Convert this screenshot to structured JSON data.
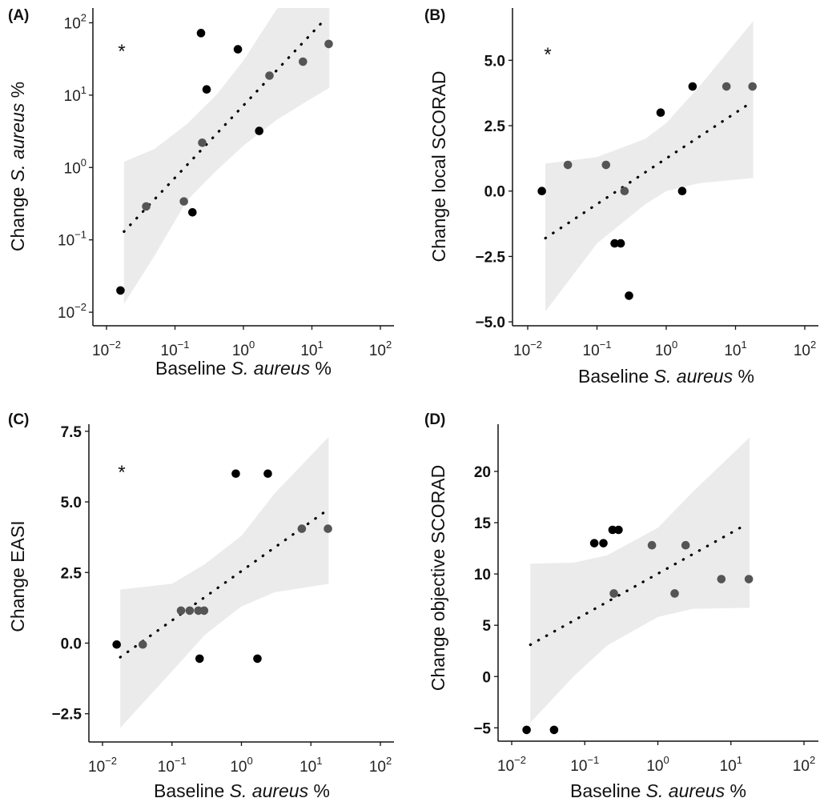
{
  "chart_data": [
    {
      "type": "scatter",
      "panel_label": "(A)",
      "annotation": "*",
      "xlabel": {
        "pre": "Baseline ",
        "italic": "S. aureus",
        "post": " %"
      },
      "ylabel": {
        "pre": "Change ",
        "italic": "S. aureus",
        "post": " %"
      },
      "xscale": "log",
      "yscale": "log",
      "xticks": [
        {
          "base": "10",
          "exp": "−2",
          "v": 0.01
        },
        {
          "base": "10",
          "exp": "−1",
          "v": 0.1
        },
        {
          "base": "10",
          "exp": "0",
          "v": 1
        },
        {
          "base": "10",
          "exp": "1",
          "v": 10
        },
        {
          "base": "10",
          "exp": "2",
          "v": 100
        }
      ],
      "yticks": [
        {
          "base": "10",
          "exp": "2",
          "v": 100
        },
        {
          "base": "10",
          "exp": "1",
          "v": 10
        },
        {
          "base": "10",
          "exp": "0",
          "v": 1
        },
        {
          "base": "10",
          "exp": "−1",
          "v": 0.1
        },
        {
          "base": "10",
          "exp": "−2",
          "v": 0.01
        }
      ],
      "xlim": [
        0.0065,
        145
      ],
      "ylim": [
        0.0065,
        160
      ],
      "points": [
        {
          "x": 0.016,
          "y": 0.02,
          "c": "black"
        },
        {
          "x": 0.038,
          "y": 0.29,
          "c": "grey"
        },
        {
          "x": 0.135,
          "y": 0.34,
          "c": "grey"
        },
        {
          "x": 0.18,
          "y": 0.24,
          "c": "black"
        },
        {
          "x": 0.25,
          "y": 2.2,
          "c": "grey"
        },
        {
          "x": 0.24,
          "y": 72,
          "c": "black"
        },
        {
          "x": 0.29,
          "y": 12,
          "c": "black"
        },
        {
          "x": 0.83,
          "y": 43,
          "c": "black"
        },
        {
          "x": 1.7,
          "y": 3.2,
          "c": "black"
        },
        {
          "x": 2.4,
          "y": 18.6,
          "c": "grey"
        },
        {
          "x": 7.4,
          "y": 29,
          "c": "grey"
        },
        {
          "x": 17.6,
          "y": 51,
          "c": "grey"
        }
      ],
      "trend": [
        [
          0.018,
          0.13
        ],
        [
          16,
          115
        ]
      ],
      "band": {
        "x": [
          0.018,
          0.05,
          0.15,
          0.4,
          1,
          3,
          8,
          18
        ],
        "upper": [
          1.2,
          1.8,
          4,
          10,
          30,
          150,
          400,
          500
        ],
        "lower": [
          0.013,
          0.06,
          0.35,
          0.9,
          2,
          4.5,
          8,
          12.6
        ]
      }
    },
    {
      "type": "scatter",
      "panel_label": "(B)",
      "annotation": "*",
      "xlabel": {
        "pre": "Baseline ",
        "italic": "S. aureus",
        "post": " %"
      },
      "ylabel": {
        "pre": "Change local SCORAD",
        "italic": "",
        "post": ""
      },
      "xscale": "log",
      "yscale": "linear",
      "xticks": [
        {
          "base": "10",
          "exp": "−2",
          "v": 0.01
        },
        {
          "base": "10",
          "exp": "−1",
          "v": 0.1
        },
        {
          "base": "10",
          "exp": "0",
          "v": 1
        },
        {
          "base": "10",
          "exp": "1",
          "v": 10
        },
        {
          "base": "10",
          "exp": "2",
          "v": 100
        }
      ],
      "yticks": [
        {
          "base": "5.0",
          "exp": "",
          "v": 5
        },
        {
          "base": "2.5",
          "exp": "",
          "v": 2.5
        },
        {
          "base": "0.0",
          "exp": "",
          "v": 0
        },
        {
          "base": "−2.5",
          "exp": "",
          "v": -2.5
        },
        {
          "base": "−5.0",
          "exp": "",
          "v": -5
        }
      ],
      "xlim": [
        0.0062,
        160
      ],
      "ylim": [
        -5.15,
        7
      ],
      "points": [
        {
          "x": 0.016,
          "y": 0,
          "c": "black"
        },
        {
          "x": 0.038,
          "y": 1,
          "c": "grey"
        },
        {
          "x": 0.135,
          "y": 1,
          "c": "grey"
        },
        {
          "x": 0.18,
          "y": -2,
          "c": "black"
        },
        {
          "x": 0.22,
          "y": -2,
          "c": "black"
        },
        {
          "x": 0.25,
          "y": 0,
          "c": "grey"
        },
        {
          "x": 0.29,
          "y": -4,
          "c": "black"
        },
        {
          "x": 0.83,
          "y": 3,
          "c": "black"
        },
        {
          "x": 1.7,
          "y": 0,
          "c": "black"
        },
        {
          "x": 2.4,
          "y": 4,
          "c": "black"
        },
        {
          "x": 7.4,
          "y": 4,
          "c": "grey"
        },
        {
          "x": 17.6,
          "y": 4,
          "c": "grey"
        }
      ],
      "trend": [
        [
          0.018,
          -1.8
        ],
        [
          15,
          3.3
        ]
      ],
      "band": {
        "x": [
          0.018,
          0.1,
          0.5,
          1,
          3,
          18
        ],
        "upper": [
          1.05,
          1.3,
          2,
          2.6,
          4,
          6.5
        ],
        "lower": [
          -4.6,
          -2,
          -0.5,
          0,
          0.3,
          0.5
        ]
      }
    },
    {
      "type": "scatter",
      "panel_label": "(C)",
      "annotation": "*",
      "xlabel": {
        "pre": "Baseline ",
        "italic": "S. aureus",
        "post": " %"
      },
      "ylabel": {
        "pre": "Change EASI",
        "italic": "",
        "post": ""
      },
      "xscale": "log",
      "yscale": "linear",
      "xticks": [
        {
          "base": "10",
          "exp": "−2",
          "v": 0.01
        },
        {
          "base": "10",
          "exp": "−1",
          "v": 0.1
        },
        {
          "base": "10",
          "exp": "0",
          "v": 1
        },
        {
          "base": "10",
          "exp": "1",
          "v": 10
        },
        {
          "base": "10",
          "exp": "2",
          "v": 100
        }
      ],
      "yticks": [
        {
          "base": "7.5",
          "exp": "",
          "v": 7.5
        },
        {
          "base": "5.0",
          "exp": "",
          "v": 5
        },
        {
          "base": "2.5",
          "exp": "",
          "v": 2.5
        },
        {
          "base": "0.0",
          "exp": "",
          "v": 0
        },
        {
          "base": "−2.5",
          "exp": "",
          "v": -2.5
        }
      ],
      "xlim": [
        0.0064,
        150
      ],
      "ylim": [
        -3.5,
        7.75
      ],
      "points": [
        {
          "x": 0.016,
          "y": -0.05,
          "c": "black"
        },
        {
          "x": 0.038,
          "y": -0.05,
          "c": "grey"
        },
        {
          "x": 0.135,
          "y": 1.15,
          "c": "grey"
        },
        {
          "x": 0.18,
          "y": 1.15,
          "c": "grey"
        },
        {
          "x": 0.24,
          "y": 1.15,
          "c": "grey"
        },
        {
          "x": 0.25,
          "y": -0.55,
          "c": "black"
        },
        {
          "x": 0.29,
          "y": 1.15,
          "c": "grey"
        },
        {
          "x": 0.83,
          "y": 6,
          "c": "black"
        },
        {
          "x": 1.7,
          "y": -0.55,
          "c": "black"
        },
        {
          "x": 2.4,
          "y": 6,
          "c": "black"
        },
        {
          "x": 7.4,
          "y": 4.05,
          "c": "grey"
        },
        {
          "x": 17.6,
          "y": 4.05,
          "c": "grey"
        }
      ],
      "trend": [
        [
          0.018,
          -0.5
        ],
        [
          17,
          4.7
        ]
      ],
      "band": {
        "x": [
          0.018,
          0.1,
          0.3,
          1,
          3,
          18
        ],
        "upper": [
          1.9,
          2.1,
          2.8,
          3.8,
          5.3,
          7.3
        ],
        "lower": [
          -3,
          -1,
          0.3,
          1.3,
          1.8,
          2.1
        ]
      }
    },
    {
      "type": "scatter",
      "panel_label": "(D)",
      "annotation": "",
      "xlabel": {
        "pre": "Baseline ",
        "italic": "S. aureus",
        "post": " %"
      },
      "ylabel": {
        "pre": "Change objective SCORAD",
        "italic": "",
        "post": ""
      },
      "xscale": "log",
      "yscale": "linear",
      "xticks": [
        {
          "base": "10",
          "exp": "−2",
          "v": 0.01
        },
        {
          "base": "10",
          "exp": "−1",
          "v": 0.1
        },
        {
          "base": "10",
          "exp": "0",
          "v": 1
        },
        {
          "base": "10",
          "exp": "1",
          "v": 10
        },
        {
          "base": "10",
          "exp": "2",
          "v": 100
        }
      ],
      "yticks": [
        {
          "base": "20",
          "exp": "",
          "v": 20
        },
        {
          "base": "15",
          "exp": "",
          "v": 15
        },
        {
          "base": "10",
          "exp": "",
          "v": 10
        },
        {
          "base": "5",
          "exp": "",
          "v": 5
        },
        {
          "base": "0",
          "exp": "",
          "v": 0
        },
        {
          "base": "−5",
          "exp": "",
          "v": -5
        }
      ],
      "xlim": [
        0.0063,
        155
      ],
      "ylim": [
        -6.3,
        24.6
      ],
      "points": [
        {
          "x": 0.016,
          "y": -5.2,
          "c": "black"
        },
        {
          "x": 0.038,
          "y": -5.2,
          "c": "black"
        },
        {
          "x": 0.135,
          "y": 13,
          "c": "black"
        },
        {
          "x": 0.18,
          "y": 13,
          "c": "black"
        },
        {
          "x": 0.24,
          "y": 14.3,
          "c": "black"
        },
        {
          "x": 0.25,
          "y": 8.1,
          "c": "grey"
        },
        {
          "x": 0.29,
          "y": 14.3,
          "c": "black"
        },
        {
          "x": 0.83,
          "y": 12.8,
          "c": "grey"
        },
        {
          "x": 1.7,
          "y": 8.1,
          "c": "grey"
        },
        {
          "x": 2.4,
          "y": 12.8,
          "c": "grey"
        },
        {
          "x": 7.4,
          "y": 9.5,
          "c": "grey"
        },
        {
          "x": 17.6,
          "y": 9.5,
          "c": "grey"
        }
      ],
      "trend": [
        [
          0.018,
          3.1
        ],
        [
          15,
          14.7
        ]
      ],
      "band": {
        "x": [
          0.018,
          0.07,
          0.2,
          1,
          3,
          18
        ],
        "upper": [
          11,
          11.1,
          11.8,
          14.5,
          18,
          23.3
        ],
        "lower": [
          -4.5,
          0,
          3,
          5.8,
          6.6,
          6.7
        ]
      }
    }
  ],
  "colors": {
    "black": "#000000",
    "grey": "#555555",
    "band": "#ebebeb",
    "axis": "#111111"
  }
}
